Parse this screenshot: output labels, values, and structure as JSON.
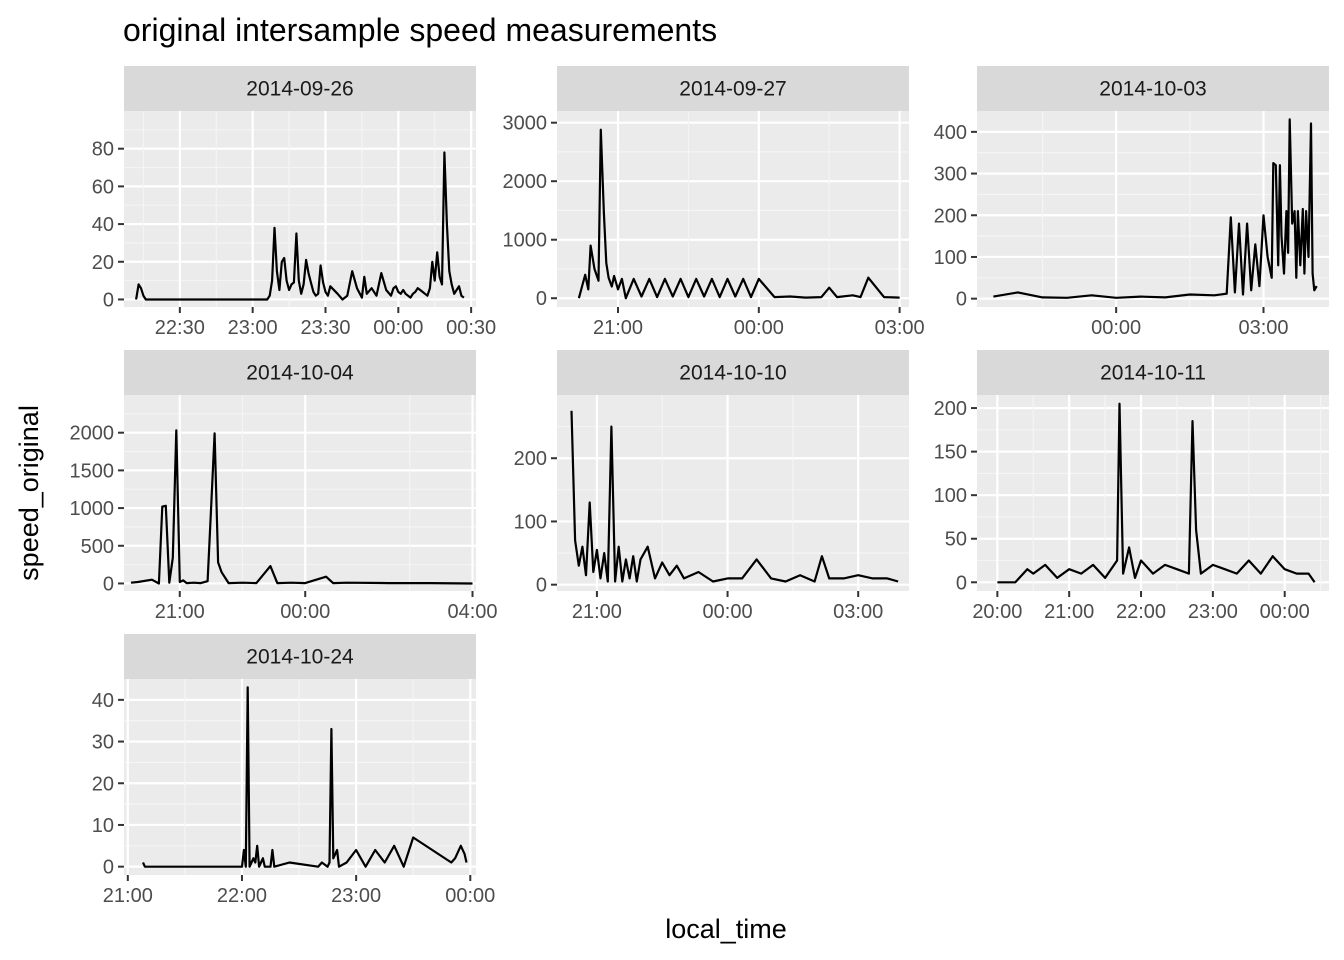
{
  "chart_data": {
    "type": "line",
    "title": "original intersample speed measurements",
    "xlabel": "local_time",
    "ylabel": "speed_original",
    "grid": true,
    "panels": [
      {
        "name": "2014-09-26",
        "xlim": [
          "22:07",
          "00:32"
        ],
        "ylim": [
          -4,
          100
        ],
        "x_ticks": [
          "22:30",
          "23:00",
          "23:30",
          "00:00",
          "00:30"
        ],
        "y_ticks": [
          0,
          20,
          40,
          60,
          80
        ],
        "x": [
          "22:12",
          "22:13",
          "22:14",
          "22:15",
          "22:16",
          "22:17",
          "22:18",
          "22:25",
          "22:40",
          "22:55",
          "23:06",
          "23:07",
          "23:08",
          "23:09",
          "23:10",
          "23:11",
          "23:12",
          "23:13",
          "23:14",
          "23:15",
          "23:16",
          "23:17",
          "23:18",
          "23:19",
          "23:20",
          "23:21",
          "23:22",
          "23:23",
          "23:24",
          "23:25",
          "23:26",
          "23:27",
          "23:28",
          "23:29",
          "23:30",
          "23:31",
          "23:32",
          "23:35",
          "23:37",
          "23:38",
          "23:39",
          "23:41",
          "23:43",
          "23:45",
          "23:46",
          "23:47",
          "23:49",
          "23:51",
          "23:53",
          "23:55",
          "23:57",
          "23:58",
          "23:59",
          "00:00",
          "00:01",
          "00:02",
          "00:03",
          "00:04",
          "00:05",
          "00:06",
          "00:07",
          "00:08",
          "00:09",
          "00:10",
          "00:11",
          "00:12",
          "00:13",
          "00:14",
          "00:15",
          "00:16",
          "00:17",
          "00:18",
          "00:19",
          "00:20",
          "00:21",
          "00:22",
          "00:23",
          "00:24",
          "00:25",
          "00:26",
          "00:27"
        ],
        "y": [
          0,
          8,
          6,
          2,
          0,
          0,
          0,
          0,
          0,
          0,
          0,
          2,
          10,
          38,
          15,
          5,
          20,
          22,
          10,
          5,
          8,
          9,
          35,
          10,
          3,
          8,
          21,
          14,
          9,
          4,
          2,
          3,
          18,
          9,
          4,
          2,
          7,
          3,
          0,
          1,
          2,
          15,
          6,
          1,
          12,
          3,
          6,
          2,
          14,
          5,
          2,
          6,
          7,
          4,
          3,
          5,
          3,
          2,
          1,
          3,
          4,
          6,
          5,
          4,
          3,
          2,
          6,
          20,
          10,
          25,
          12,
          8,
          78,
          40,
          15,
          8,
          3,
          5,
          7,
          2,
          1
        ],
        "series_name": ""
      },
      {
        "name": "2014-09-27",
        "xlim": [
          "19:42",
          "03:12"
        ],
        "ylim": [
          -150,
          3200
        ],
        "x_ticks": [
          "21:00",
          "00:00",
          "03:00"
        ],
        "y_ticks": [
          0,
          1000,
          2000,
          3000
        ],
        "x": [
          "20:10",
          "20:15",
          "20:18",
          "20:22",
          "20:25",
          "20:30",
          "20:35",
          "20:38",
          "20:42",
          "20:45",
          "20:48",
          "20:52",
          "20:55",
          "21:00",
          "21:05",
          "21:10",
          "21:20",
          "21:30",
          "21:40",
          "21:50",
          "22:00",
          "22:10",
          "22:20",
          "22:30",
          "22:40",
          "22:50",
          "23:00",
          "23:10",
          "23:20",
          "23:30",
          "23:40",
          "23:50",
          "00:00",
          "00:20",
          "00:40",
          "01:00",
          "01:20",
          "01:30",
          "01:40",
          "02:00",
          "02:10",
          "02:20",
          "02:40",
          "03:00"
        ],
        "y": [
          0,
          250,
          400,
          150,
          900,
          500,
          300,
          2880,
          1450,
          600,
          350,
          200,
          380,
          150,
          330,
          0,
          330,
          30,
          330,
          20,
          330,
          30,
          330,
          20,
          330,
          30,
          330,
          20,
          330,
          30,
          330,
          20,
          330,
          20,
          30,
          10,
          20,
          180,
          20,
          50,
          20,
          350,
          20,
          10
        ],
        "series_name": ""
      },
      {
        "name": "2014-10-03",
        "xlim": [
          "21:10",
          "04:20"
        ],
        "ylim": [
          -20,
          450
        ],
        "x_ticks": [
          "00:00",
          "03:00"
        ],
        "y_ticks": [
          0,
          100,
          200,
          300,
          400
        ],
        "x": [
          "21:30",
          "22:00",
          "22:30",
          "23:00",
          "23:30",
          "00:00",
          "00:30",
          "01:00",
          "01:30",
          "02:00",
          "02:15",
          "02:20",
          "02:25",
          "02:30",
          "02:35",
          "02:40",
          "02:45",
          "02:50",
          "02:55",
          "03:00",
          "03:05",
          "03:10",
          "03:12",
          "03:15",
          "03:18",
          "03:20",
          "03:22",
          "03:25",
          "03:28",
          "03:30",
          "03:32",
          "03:35",
          "03:38",
          "03:40",
          "03:42",
          "03:45",
          "03:48",
          "03:50",
          "03:52",
          "03:55",
          "03:58",
          "04:00",
          "04:02",
          "04:05"
        ],
        "y": [
          5,
          15,
          3,
          2,
          8,
          2,
          5,
          3,
          10,
          8,
          12,
          195,
          15,
          180,
          10,
          180,
          20,
          130,
          30,
          200,
          100,
          50,
          325,
          320,
          80,
          320,
          150,
          60,
          210,
          110,
          430,
          180,
          210,
          50,
          210,
          80,
          215,
          60,
          210,
          100,
          420,
          60,
          20,
          30
        ],
        "series_name": ""
      },
      {
        "name": "2014-10-04",
        "xlim": [
          "19:40",
          "04:05"
        ],
        "ylim": [
          -100,
          2500
        ],
        "x_ticks": [
          "21:00",
          "00:00",
          "04:00"
        ],
        "y_ticks": [
          0,
          500,
          1000,
          1500,
          2000
        ],
        "x": [
          "19:50",
          "20:00",
          "20:20",
          "20:30",
          "20:35",
          "20:40",
          "20:45",
          "20:50",
          "20:55",
          "21:00",
          "21:05",
          "21:10",
          "21:20",
          "21:30",
          "21:40",
          "21:45",
          "21:50",
          "21:55",
          "22:00",
          "22:10",
          "22:30",
          "22:50",
          "23:10",
          "23:20",
          "23:40",
          "00:00",
          "00:30",
          "00:40",
          "01:00",
          "02:00",
          "03:00",
          "04:00"
        ],
        "y": [
          10,
          20,
          50,
          0,
          1020,
          1030,
          10,
          340,
          2030,
          20,
          40,
          5,
          10,
          5,
          30,
          1000,
          1990,
          280,
          150,
          5,
          10,
          5,
          230,
          5,
          10,
          5,
          90,
          5,
          10,
          5,
          5,
          0
        ],
        "series_name": ""
      },
      {
        "name": "2014-10-10",
        "xlim": [
          "20:05",
          "04:10"
        ],
        "ylim": [
          -10,
          300
        ],
        "x_ticks": [
          "21:00",
          "00:00",
          "03:00"
        ],
        "y_ticks": [
          0,
          100,
          200
        ],
        "x": [
          "20:25",
          "20:30",
          "20:35",
          "20:40",
          "20:45",
          "20:50",
          "20:55",
          "21:00",
          "21:05",
          "21:10",
          "21:15",
          "21:20",
          "21:25",
          "21:30",
          "21:35",
          "21:40",
          "21:45",
          "21:50",
          "21:55",
          "22:00",
          "22:10",
          "22:20",
          "22:30",
          "22:40",
          "22:50",
          "23:00",
          "23:20",
          "23:40",
          "00:00",
          "00:20",
          "00:40",
          "01:00",
          "01:20",
          "01:40",
          "02:00",
          "02:10",
          "02:20",
          "02:40",
          "03:00",
          "03:20",
          "03:40",
          "03:55"
        ],
        "y": [
          275,
          70,
          30,
          60,
          15,
          130,
          20,
          55,
          10,
          50,
          5,
          250,
          5,
          60,
          5,
          40,
          10,
          45,
          5,
          40,
          60,
          10,
          35,
          15,
          30,
          10,
          20,
          5,
          10,
          10,
          40,
          10,
          5,
          15,
          5,
          45,
          10,
          10,
          15,
          10,
          10,
          5
        ],
        "series_name": ""
      },
      {
        "name": "2014-10-11",
        "xlim": [
          "19:43",
          "00:37"
        ],
        "ylim": [
          -10,
          215
        ],
        "x_ticks": [
          "20:00",
          "21:00",
          "22:00",
          "23:00",
          "00:00"
        ],
        "y_ticks": [
          0,
          50,
          100,
          150,
          200
        ],
        "x": [
          "20:00",
          "20:15",
          "20:25",
          "20:30",
          "20:40",
          "20:50",
          "21:00",
          "21:10",
          "21:20",
          "21:30",
          "21:40",
          "21:42",
          "21:45",
          "21:50",
          "21:55",
          "22:00",
          "22:10",
          "22:20",
          "22:30",
          "22:40",
          "22:43",
          "22:46",
          "22:50",
          "23:00",
          "23:10",
          "23:20",
          "23:30",
          "23:40",
          "23:50",
          "00:00",
          "00:10",
          "00:20",
          "00:25"
        ],
        "y": [
          0,
          0,
          15,
          10,
          20,
          5,
          15,
          10,
          20,
          5,
          25,
          205,
          10,
          40,
          5,
          25,
          10,
          20,
          15,
          10,
          185,
          60,
          10,
          20,
          15,
          10,
          25,
          10,
          30,
          15,
          10,
          10,
          0
        ],
        "series_name": ""
      },
      {
        "name": "2014-10-24",
        "xlim": [
          "20:58",
          "00:03"
        ],
        "ylim": [
          -2,
          45
        ],
        "x_ticks": [
          "21:00",
          "22:00",
          "23:00",
          "00:00"
        ],
        "y_ticks": [
          0,
          10,
          20,
          30,
          40
        ],
        "x": [
          "21:08",
          "21:09",
          "21:30",
          "22:00",
          "22:01",
          "22:02",
          "22:03",
          "22:04",
          "22:05",
          "22:06",
          "22:07",
          "22:08",
          "22:09",
          "22:10",
          "22:11",
          "22:12",
          "22:15",
          "22:16",
          "22:17",
          "22:25",
          "22:40",
          "22:42",
          "22:45",
          "22:46",
          "22:47",
          "22:48",
          "22:50",
          "22:51",
          "22:55",
          "23:00",
          "23:05",
          "23:10",
          "23:15",
          "23:20",
          "23:25",
          "23:30",
          "23:50",
          "23:52",
          "23:55",
          "23:57",
          "23:58"
        ],
        "y": [
          1,
          0,
          0,
          0,
          4,
          0,
          43,
          0,
          1,
          2,
          1,
          5,
          0,
          1,
          2,
          0,
          0,
          4,
          0,
          1,
          0,
          1,
          0,
          1,
          33,
          2,
          4,
          0,
          1,
          4,
          0,
          4,
          1,
          5,
          0,
          7,
          1,
          2,
          5,
          3,
          1
        ],
        "series_name": ""
      }
    ]
  }
}
